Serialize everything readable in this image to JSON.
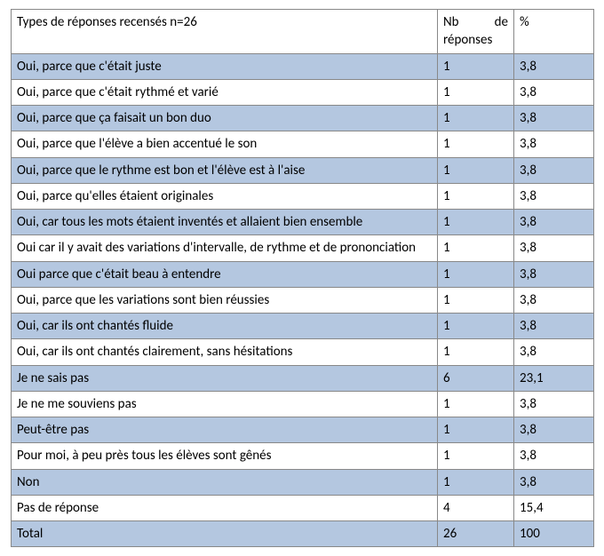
{
  "table": {
    "header": {
      "col1": "Types de réponses recensés n=26",
      "col2_word1": "Nb",
      "col2_word2": "de",
      "col2_line2": "réponses",
      "col3": "%"
    },
    "rows": [
      {
        "type": "Oui, parce que c'était juste",
        "nb": "1",
        "pct": "3,8",
        "shaded": true
      },
      {
        "type": "Oui, parce que c'était rythmé et varié",
        "nb": "1",
        "pct": "3,8",
        "shaded": false
      },
      {
        "type": "Oui, parce que ça faisait un bon duo",
        "nb": "1",
        "pct": "3,8",
        "shaded": true
      },
      {
        "type": "Oui, parce que l'élève a bien accentué le son",
        "nb": "1",
        "pct": "3,8",
        "shaded": false
      },
      {
        "type": "Oui, parce que le rythme est bon et l'élève est à l'aise",
        "nb": "1",
        "pct": "3,8",
        "shaded": true
      },
      {
        "type": "Oui, parce qu'elles étaient originales",
        "nb": "1",
        "pct": "3,8",
        "shaded": false
      },
      {
        "type": "Oui, car tous les mots étaient inventés et allaient bien ensemble",
        "nb": "1",
        "pct": "3,8",
        "shaded": true
      },
      {
        "type": "Oui car il y avait des variations d'intervalle, de rythme et de prononciation",
        "nb": "1",
        "pct": "3,8",
        "shaded": false,
        "justify": true
      },
      {
        "type": "Oui parce que c'était beau à entendre",
        "nb": "1",
        "pct": "3,8",
        "shaded": true
      },
      {
        "type": "Oui, parce que les variations sont bien réussies",
        "nb": "1",
        "pct": "3,8",
        "shaded": false
      },
      {
        "type": "Oui, car ils ont chantés fluide",
        "nb": "1",
        "pct": "3,8",
        "shaded": true
      },
      {
        "type": "Oui, car ils ont chantés clairement, sans hésitations",
        "nb": "1",
        "pct": "3,8",
        "shaded": false
      },
      {
        "type": "Je ne sais pas",
        "nb": "6",
        "pct": "23,1",
        "shaded": true
      },
      {
        "type": "Je ne me souviens pas",
        "nb": "1",
        "pct": "3,8",
        "shaded": false
      },
      {
        "type": "Peut-être pas",
        "nb": "1",
        "pct": "3,8",
        "shaded": true
      },
      {
        "type": "Pour moi, à peu près tous les élèves sont gênés",
        "nb": "1",
        "pct": "3,8",
        "shaded": false
      },
      {
        "type": "Non",
        "nb": "1",
        "pct": "3,8",
        "shaded": true
      },
      {
        "type": "Pas de réponse",
        "nb": "4",
        "pct": "15,4",
        "shaded": false
      },
      {
        "type": "Total",
        "nb": "26",
        "pct": "100",
        "shaded": true
      }
    ],
    "colors": {
      "shade": "#b4c7e0",
      "border": "#888888",
      "text": "#000000",
      "background": "#ffffff"
    },
    "fontsize": 15
  }
}
